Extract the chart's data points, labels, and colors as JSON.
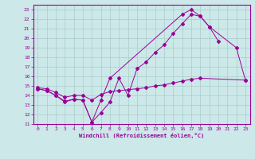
{
  "bg_color": "#cce8e8",
  "line_color": "#990099",
  "grid_color": "#aacccc",
  "xlabel": "Windchill (Refroidissement éolien,°C)",
  "xlim": [
    -0.5,
    23.5
  ],
  "ylim": [
    11,
    23.5
  ],
  "yticks": [
    11,
    12,
    13,
    14,
    15,
    16,
    17,
    18,
    19,
    20,
    21,
    22,
    23
  ],
  "xticks": [
    0,
    1,
    2,
    3,
    4,
    5,
    6,
    7,
    8,
    9,
    10,
    11,
    12,
    13,
    14,
    15,
    16,
    17,
    18,
    19,
    20,
    21,
    22,
    23
  ],
  "curve1_x": [
    0,
    1,
    2,
    3,
    4,
    5,
    6,
    7,
    8,
    9,
    10,
    11,
    12,
    13,
    14,
    15,
    16,
    17,
    18,
    19,
    20
  ],
  "curve1_y": [
    14.7,
    14.5,
    14.0,
    13.3,
    13.6,
    13.5,
    11.2,
    12.2,
    13.3,
    15.8,
    14.0,
    16.8,
    17.5,
    18.5,
    19.3,
    20.5,
    21.5,
    22.5,
    22.3,
    21.2,
    19.7
  ],
  "curve2_x": [
    0,
    1,
    2,
    3,
    4,
    5,
    6,
    7,
    8,
    16,
    17,
    18,
    19,
    22,
    23
  ],
  "curve2_y": [
    14.7,
    14.5,
    14.0,
    13.4,
    13.6,
    13.5,
    11.2,
    13.5,
    15.8,
    22.5,
    23.0,
    22.3,
    21.2,
    19.0,
    15.6
  ],
  "curve3_x": [
    0,
    1,
    2,
    3,
    4,
    5,
    6,
    7,
    8,
    9,
    10,
    11,
    12,
    13,
    14,
    15,
    16,
    17,
    18,
    23
  ],
  "curve3_y": [
    14.8,
    14.7,
    14.3,
    13.8,
    14.0,
    14.0,
    13.5,
    14.1,
    14.4,
    14.5,
    14.6,
    14.7,
    14.8,
    15.0,
    15.1,
    15.3,
    15.5,
    15.7,
    15.8,
    15.6
  ]
}
